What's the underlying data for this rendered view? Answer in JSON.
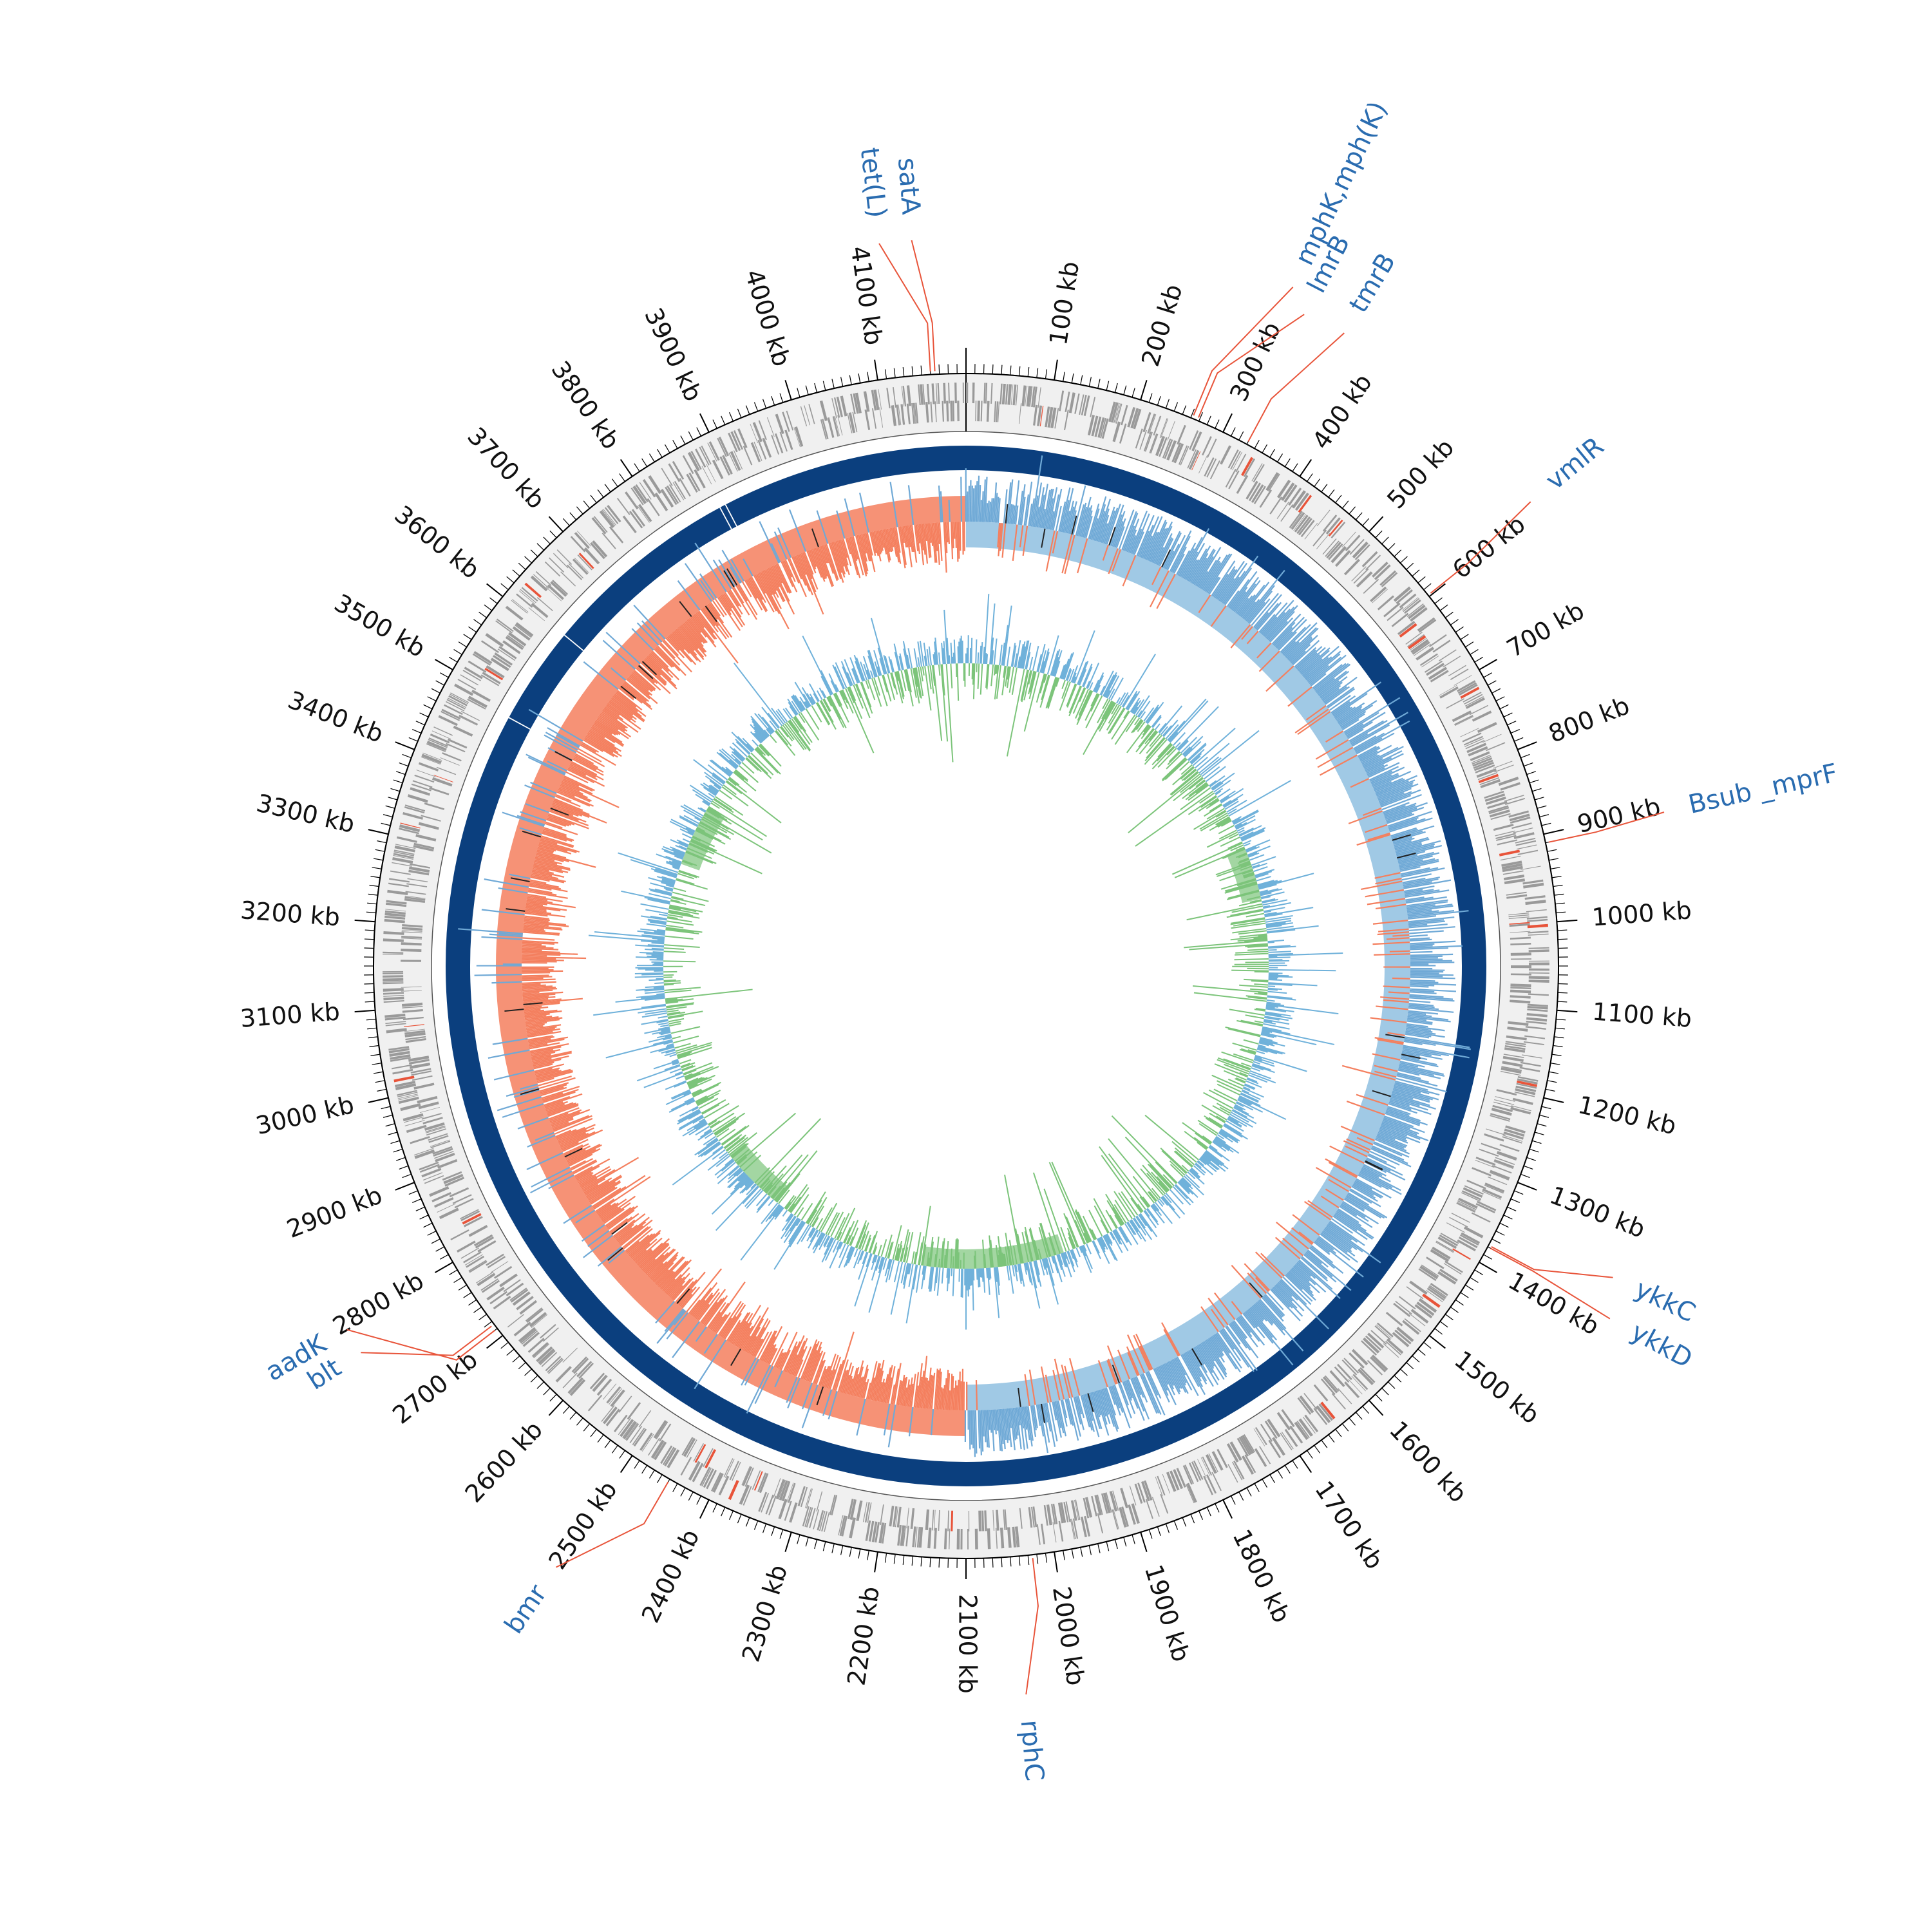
{
  "genome": {
    "total_kb": 4200,
    "scale_unit": "kb",
    "tick_labels": [
      "100 kb",
      "200 kb",
      "300 kb",
      "400 kb",
      "500 kb",
      "600 kb",
      "700 kb",
      "800 kb",
      "900 kb",
      "1000 kb",
      "1100 kb",
      "1200 kb",
      "1300 kb",
      "1400 kb",
      "1500 kb",
      "1600 kb",
      "1700 kb",
      "1800 kb",
      "1900 kb",
      "2000 kb",
      "2100 kb",
      "2200 kb",
      "2300 kb",
      "2400 kb",
      "2500 kb",
      "2600 kb",
      "2700 kb",
      "2800 kb",
      "2900 kb",
      "3000 kb",
      "3100 kb",
      "3200 kb",
      "3300 kb",
      "3400 kb",
      "3500 kb",
      "3600 kb",
      "3700 kb",
      "3800 kb",
      "3900 kb",
      "4000 kb",
      "4100 kb"
    ],
    "tick_positions_kb": [
      100,
      200,
      300,
      400,
      500,
      600,
      700,
      800,
      900,
      1000,
      1100,
      1200,
      1300,
      1400,
      1500,
      1600,
      1700,
      1800,
      1900,
      2000,
      2100,
      2200,
      2300,
      2400,
      2500,
      2600,
      2700,
      2800,
      2900,
      3000,
      3100,
      3200,
      3300,
      3400,
      3500,
      3600,
      3700,
      3800,
      3900,
      4000,
      4100
    ]
  },
  "resistance_genes": [
    {
      "label": "tet(L)",
      "position_kb": 4160
    },
    {
      "label": "satA",
      "position_kb": 4165
    },
    {
      "label": "mphK,mph(K)",
      "position_kb": 262
    },
    {
      "label": "lmrB",
      "position_kb": 268
    },
    {
      "label": "tmrB",
      "position_kb": 330
    },
    {
      "label": "vmlR",
      "position_kb": 598
    },
    {
      "label": "Bsub _mprF",
      "position_kb": 910
    },
    {
      "label": "ykkC",
      "position_kb": 1378
    },
    {
      "label": "ykkD",
      "position_kb": 1380
    },
    {
      "label": "rphC",
      "position_kb": 2025
    },
    {
      "label": "bmr",
      "position_kb": 2450
    },
    {
      "label": "aadK",
      "position_kb": 2710
    },
    {
      "label": "blt",
      "position_kb": 2716
    }
  ],
  "tracks": {
    "backbone_color": "#0b3f7e",
    "gene_color": "#9a9a9a",
    "highlight_gene_color": "#e8543a",
    "skew_positive_color": "#8fbfe0",
    "skew_negative_color": "#f47f5e",
    "gc_positive_color": "#6fb1da",
    "gc_negative_color": "#7cc47a",
    "label_line_color": "#e8543a",
    "label_text_color": "#2a6cb0"
  },
  "chart_data": {
    "type": "circular-genome-map",
    "genome_length_kb": 4200,
    "origin_kb": 0,
    "gc_skew_sign_change_kb": [
      0,
      2100
    ],
    "resistance_gene_positions_kb": [
      4160,
      4165,
      262,
      268,
      330,
      598,
      910,
      1378,
      1380,
      2025,
      2450,
      2710,
      2716
    ]
  }
}
